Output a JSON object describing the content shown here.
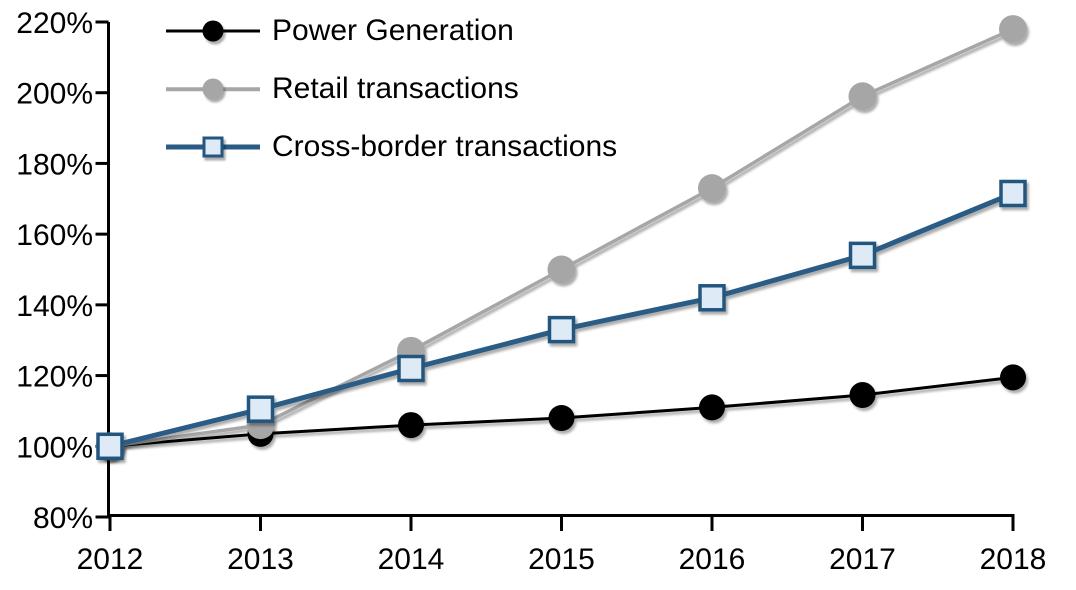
{
  "chart_data": {
    "type": "line",
    "title": "",
    "xlabel": "",
    "ylabel": "",
    "categories": [
      "2012",
      "2013",
      "2014",
      "2015",
      "2016",
      "2017",
      "2018"
    ],
    "series": [
      {
        "name": "Power Generation",
        "color": "#000000",
        "marker": "circle",
        "marker_fill": "#000000",
        "values": [
          100,
          103.5,
          106,
          108,
          111,
          114.5,
          119.5
        ]
      },
      {
        "name": "Retail transactions",
        "color": "#A6A6A6",
        "marker": "circle",
        "marker_fill": "#A6A6A6",
        "values": [
          100,
          106,
          127,
          150,
          173,
          199,
          218
        ]
      },
      {
        "name": "Cross-border transactions",
        "color": "#2A5B86",
        "marker": "square",
        "marker_fill": "#DEEAF6",
        "marker_stroke": "#24567F",
        "values": [
          100,
          110.5,
          122,
          133,
          142,
          154,
          171.5
        ]
      }
    ],
    "y_ticks": [
      "220%",
      "200%",
      "180%",
      "160%",
      "140%",
      "120%",
      "100%",
      "80%"
    ],
    "x_ticks": [
      "2012",
      "2013",
      "2014",
      "2015",
      "2016",
      "2017",
      "2018"
    ],
    "ylim": [
      80,
      220
    ],
    "grid": false,
    "legend_position": "top-left",
    "axis_color": "#000000"
  }
}
